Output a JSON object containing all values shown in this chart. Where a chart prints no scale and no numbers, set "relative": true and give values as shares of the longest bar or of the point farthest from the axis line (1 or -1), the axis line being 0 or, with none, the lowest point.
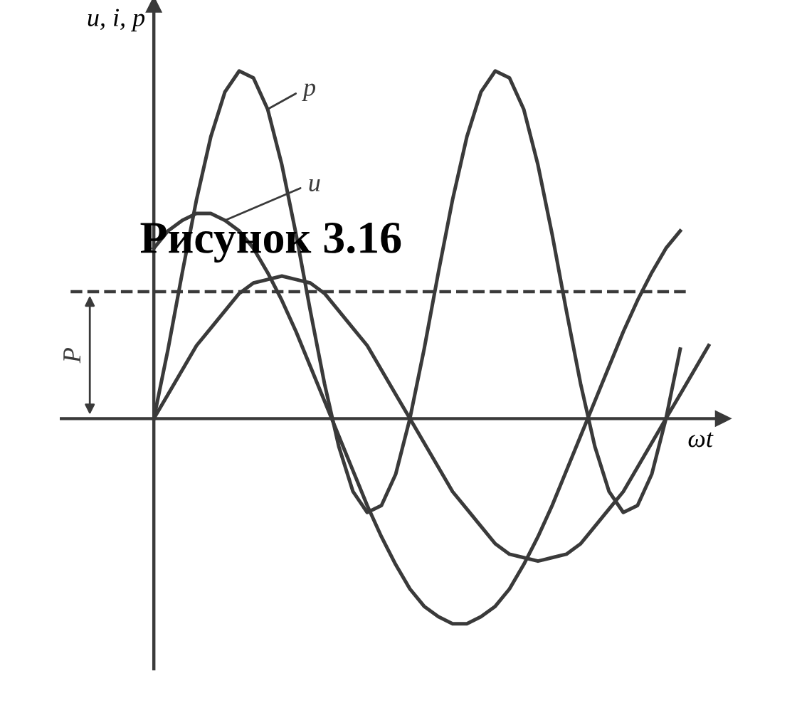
{
  "chart_data": {
    "type": "line",
    "title": "Рисунок 3.16",
    "xlabel": "ωt",
    "ylabel": "u, i, p",
    "relative": true,
    "marker": "none",
    "line_style": "solid",
    "categories": [
      null,
      null,
      null,
      null,
      null,
      null,
      null,
      null,
      null,
      null,
      null,
      null,
      null,
      null,
      null,
      null,
      null,
      null,
      null,
      null,
      null,
      null,
      null,
      null,
      null,
      null,
      null,
      null,
      null,
      null,
      null,
      null,
      null,
      null,
      null,
      null,
      null,
      null,
      null,
      null
    ],
    "series": [
      {
        "name": "p",
        "color": "#3a3a3a",
        "values": [
          0.0,
          0.2,
          0.42,
          0.63,
          0.81,
          0.94,
          1.0,
          0.98,
          0.89,
          0.73,
          0.53,
          0.31,
          0.1,
          -0.08,
          -0.21,
          -0.27,
          -0.25,
          -0.16,
          0.0,
          0.2,
          0.42,
          0.63,
          0.81,
          0.94,
          1.0,
          0.98,
          0.89,
          0.73,
          0.53,
          0.31,
          0.1,
          -0.08,
          -0.21,
          -0.27,
          -0.25,
          -0.16,
          0.0,
          0.2,
          null,
          null
        ]
      },
      {
        "name": "u",
        "color": "#3a3a3a",
        "values": [
          0.49,
          0.54,
          0.57,
          0.59,
          0.59,
          0.57,
          0.54,
          0.49,
          0.42,
          0.34,
          0.25,
          0.15,
          0.05,
          -0.05,
          -0.15,
          -0.25,
          -0.34,
          -0.42,
          -0.49,
          -0.54,
          -0.57,
          -0.59,
          -0.59,
          -0.57,
          -0.54,
          -0.49,
          -0.42,
          -0.34,
          -0.25,
          -0.15,
          -0.05,
          0.05,
          0.15,
          0.25,
          0.34,
          0.42,
          0.49,
          0.54,
          null,
          null
        ]
      },
      {
        "color": "#3a3a3a",
        "values": [
          0,
          0.07,
          0.14,
          0.21,
          0.26,
          0.31,
          0.36,
          0.39,
          0.4,
          0.41,
          0.4,
          0.39,
          0.36,
          0.31,
          0.26,
          0.21,
          0.14,
          0.07,
          0,
          -0.07,
          -0.14,
          -0.21,
          -0.26,
          -0.31,
          -0.36,
          -0.39,
          -0.4,
          -0.41,
          -0.4,
          -0.39,
          -0.36,
          -0.31,
          -0.26,
          -0.21,
          -0.14,
          -0.07,
          0,
          0.07,
          0.14,
          0.21
        ]
      }
    ],
    "ref_lines": [
      {
        "axis": "y",
        "value": 0.365,
        "label": "P",
        "line_style": "dashed",
        "color": "#3a3a3a"
      }
    ]
  }
}
